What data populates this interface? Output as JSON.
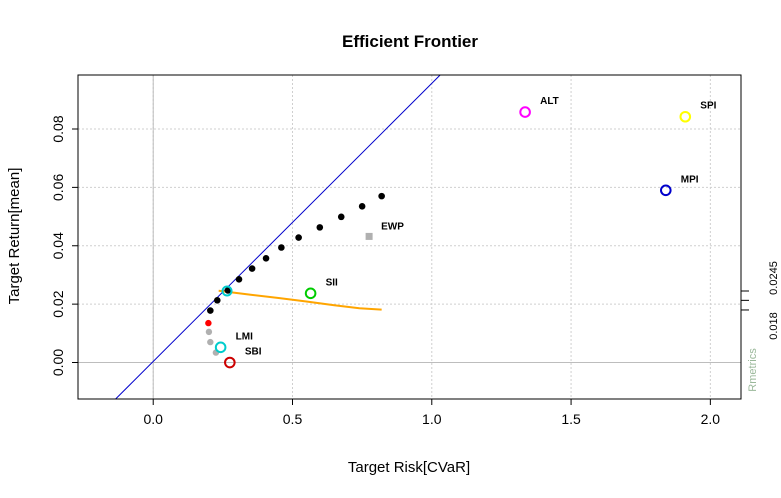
{
  "chart_data": {
    "type": "scatter",
    "title": "Efficient Frontier",
    "xlabel": "Target Risk[CVaR]",
    "ylabel": "Target Return[mean]",
    "xlim": [
      -0.27,
      2.11
    ],
    "ylim": [
      -0.0125,
      0.0985
    ],
    "x_ticks": [
      "0.0",
      "0.5",
      "1.0",
      "1.5",
      "2.0"
    ],
    "x_tick_values": [
      0,
      0.5,
      1.0,
      1.5,
      2.0
    ],
    "y_ticks": [
      "0.00",
      "0.02",
      "0.04",
      "0.06",
      "0.08"
    ],
    "y_tick_values": [
      0,
      0.02,
      0.04,
      0.06,
      0.08
    ],
    "grid": true,
    "frontier": {
      "color": "#000000",
      "points": [
        {
          "x": 0.205,
          "y": 0.0178
        },
        {
          "x": 0.23,
          "y": 0.0213
        },
        {
          "x": 0.268,
          "y": 0.0247
        },
        {
          "x": 0.308,
          "y": 0.0285
        },
        {
          "x": 0.355,
          "y": 0.0322
        },
        {
          "x": 0.405,
          "y": 0.0357
        },
        {
          "x": 0.46,
          "y": 0.0394
        },
        {
          "x": 0.522,
          "y": 0.0428
        },
        {
          "x": 0.598,
          "y": 0.0463
        },
        {
          "x": 0.675,
          "y": 0.0499
        },
        {
          "x": 0.75,
          "y": 0.0535
        },
        {
          "x": 0.82,
          "y": 0.057
        }
      ]
    },
    "min_variance_point": {
      "x": 0.198,
      "y": 0.0135,
      "color": "#ff0000"
    },
    "inefficient_points": {
      "color": "#b0b0b0",
      "points": [
        {
          "x": 0.2,
          "y": 0.0105
        },
        {
          "x": 0.205,
          "y": 0.007
        },
        {
          "x": 0.225,
          "y": 0.0034
        }
      ]
    },
    "tangency_line": {
      "color": "#0000cc",
      "points": [
        {
          "x": -0.135,
          "y": -0.0125
        },
        {
          "x": 1.03,
          "y": 0.0985
        }
      ]
    },
    "tangency_point": {
      "x": 0.265,
      "y": 0.0245,
      "color": "#00cccc"
    },
    "monte_carlo_line": {
      "color": "#ffa500",
      "points": [
        {
          "x": 0.235,
          "y": 0.0246
        },
        {
          "x": 0.35,
          "y": 0.0232
        },
        {
          "x": 0.45,
          "y": 0.0221
        },
        {
          "x": 0.55,
          "y": 0.0209
        },
        {
          "x": 0.65,
          "y": 0.0196
        },
        {
          "x": 0.74,
          "y": 0.0186
        },
        {
          "x": 0.82,
          "y": 0.0181
        }
      ]
    },
    "ewp": {
      "label": "EWP",
      "x": 0.775,
      "y": 0.0432,
      "color": "#b0b0b0"
    },
    "assets": [
      {
        "label": "ALT",
        "x": 1.335,
        "y": 0.0858,
        "color": "#ff00ff"
      },
      {
        "label": "SPI",
        "x": 1.91,
        "y": 0.0842,
        "color": "#ffff00"
      },
      {
        "label": "MPI",
        "x": 1.84,
        "y": 0.059,
        "color": "#0000cc"
      },
      {
        "label": "SII",
        "x": 0.565,
        "y": 0.0237,
        "color": "#00cc00"
      },
      {
        "label": "LMI",
        "x": 0.242,
        "y": 0.0052,
        "color": "#00cccc"
      },
      {
        "label": "SBI",
        "x": 0.275,
        "y": 0.0,
        "color": "#cc0000"
      }
    ],
    "right_axis": {
      "labels": [
        "0.018",
        "0.0245"
      ],
      "tick_values": [
        0.018,
        0.0213,
        0.0245
      ]
    },
    "watermark": "Rmetrics"
  }
}
